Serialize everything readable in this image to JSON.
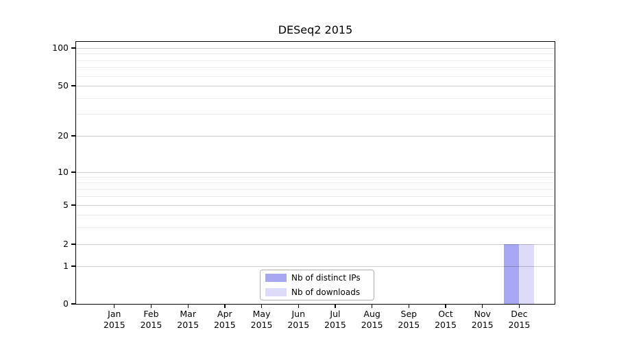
{
  "chart_data": {
    "type": "bar",
    "title": "DESeq2 2015",
    "categories": [
      "Jan",
      "Feb",
      "Mar",
      "Apr",
      "May",
      "Jun",
      "Jul",
      "Aug",
      "Sep",
      "Oct",
      "Nov",
      "Dec"
    ],
    "category_year": "2015",
    "series": [
      {
        "name": "Nb of distinct IPs",
        "color": "#a8a8f2",
        "values": [
          0,
          0,
          0,
          0,
          0,
          0,
          0,
          0,
          0,
          0,
          0,
          2
        ]
      },
      {
        "name": "Nb of downloads",
        "color": "#dcdcf8",
        "values": [
          0,
          0,
          0,
          0,
          0,
          0,
          0,
          0,
          0,
          0,
          0,
          2
        ]
      }
    ],
    "y_axis": {
      "scale": "log-like",
      "ticks": [
        100,
        50,
        20,
        10,
        5,
        2,
        1,
        0
      ],
      "minor_ticks": [
        90,
        80,
        70,
        60,
        40,
        30,
        9,
        8,
        7,
        6,
        4,
        3
      ],
      "ylim": [
        0,
        113
      ]
    },
    "legend": {
      "position": "bottom-center"
    },
    "grid": "horizontal",
    "colors": {
      "major_grid": "#cccccc",
      "minor_grid": "#ededed",
      "frame": "#000000",
      "background": "#ffffff"
    }
  }
}
